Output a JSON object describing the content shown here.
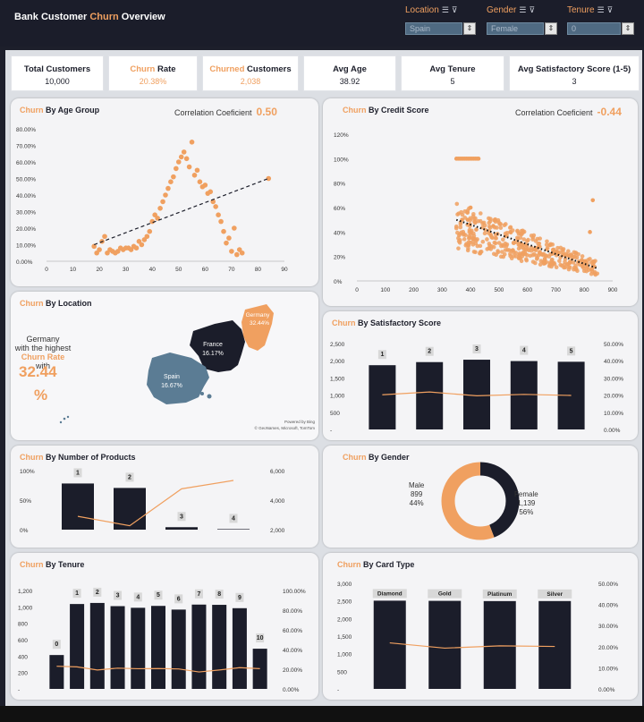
{
  "header": {
    "title_start": "Bank Customer ",
    "title_accent": "Churn",
    "title_end": " Overview",
    "filters": [
      {
        "label": "Location",
        "value": "Spain"
      },
      {
        "label": "Gender",
        "value": "Female"
      },
      {
        "label": "Tenure",
        "value": "0"
      }
    ]
  },
  "kpis": [
    {
      "label_a": "Total Customers",
      "label_b": "",
      "value": "10,000",
      "accent": false
    },
    {
      "label_a": "Churn",
      "label_b": " Rate",
      "value": "20.38%",
      "accent": true
    },
    {
      "label_a": "Churned",
      "label_b": " Customers",
      "value": "2,038",
      "accent": true
    },
    {
      "label_a": "Avg Age",
      "label_b": "",
      "value": "38.92",
      "accent": false
    },
    {
      "label_a": "Avg Tenure",
      "label_b": "",
      "value": "5",
      "accent": false
    },
    {
      "label_a": "Avg Satisfactory Score (1-5)",
      "label_b": "",
      "value": "3",
      "accent": false
    }
  ],
  "age": {
    "title_a": "Churn",
    "title_b": " By Age Group",
    "corr_label": "Correlation Coeficient",
    "corr_value": "0.50"
  },
  "credit": {
    "title_a": "Churn",
    "title_b": " By Credit Score",
    "corr_label": "Correlation Coeficient",
    "corr_value": "-0.44"
  },
  "location": {
    "title_a": "Churn",
    "title_b": " By Location",
    "note_1": "Germany",
    "note_2": "with the highest",
    "note_3a": "Churn Rate",
    "note_3b": " with",
    "note_value": "32.44",
    "note_pct": "%",
    "germany_name": "Germany",
    "germany_value": "32.44%",
    "france_name": "France",
    "france_value": "16.17%",
    "spain_name": "Spain",
    "spain_value": "16.67%",
    "credit_1": "Powered by Bing",
    "credit_2": "© GeoNames, Microsoft, TomTom"
  },
  "satisfaction": {
    "title_a": "Churn",
    "title_b": " By Satisfactory Score"
  },
  "products": {
    "title_a": "Churn",
    "title_b": " By Number of Products"
  },
  "gender": {
    "title_a": "Churn",
    "title_b": " By Gender",
    "male_label": "Male",
    "male_count": "899",
    "male_pct": "44%",
    "female_label": "Female",
    "female_count": "1,139",
    "female_pct": "56%"
  },
  "tenure": {
    "title_a": "Churn",
    "title_b": " By Tenure"
  },
  "card": {
    "title_a": "Churn",
    "title_b": " By Card Type"
  },
  "colors": {
    "accent": "#f0a060",
    "dark": "#1b1d2a",
    "map_spain": "#5b7c94"
  },
  "chart_data": [
    {
      "type": "scatter",
      "title": "Churn By Age Group",
      "x_ticks": [
        "0",
        "10",
        "20",
        "30",
        "40",
        "50",
        "60",
        "70",
        "80",
        "90"
      ],
      "y_ticks": [
        "0.00%",
        "10.00%",
        "20.00%",
        "30.00%",
        "40.00%",
        "50.00%",
        "60.00%",
        "70.00%",
        "80.00%"
      ],
      "xlim": [
        0,
        90
      ],
      "ylim": [
        0,
        80
      ],
      "trendline": [
        [
          18,
          10
        ],
        [
          84,
          50
        ]
      ],
      "points": [
        [
          18,
          9
        ],
        [
          19,
          5
        ],
        [
          20,
          7
        ],
        [
          21,
          12
        ],
        [
          22,
          15
        ],
        [
          23,
          5
        ],
        [
          24,
          7
        ],
        [
          25,
          6
        ],
        [
          26,
          5
        ],
        [
          27,
          6
        ],
        [
          28,
          8
        ],
        [
          29,
          7
        ],
        [
          30,
          8
        ],
        [
          31,
          8
        ],
        [
          32,
          7
        ],
        [
          33,
          9
        ],
        [
          34,
          8
        ],
        [
          35,
          12
        ],
        [
          36,
          10
        ],
        [
          37,
          13
        ],
        [
          38,
          15
        ],
        [
          39,
          18
        ],
        [
          40,
          24
        ],
        [
          41,
          28
        ],
        [
          42,
          26
        ],
        [
          43,
          32
        ],
        [
          44,
          36
        ],
        [
          45,
          40
        ],
        [
          46,
          44
        ],
        [
          47,
          48
        ],
        [
          48,
          51
        ],
        [
          49,
          56
        ],
        [
          50,
          60
        ],
        [
          51,
          63
        ],
        [
          52,
          66
        ],
        [
          53,
          62
        ],
        [
          54,
          57
        ],
        [
          55,
          72
        ],
        [
          56,
          52
        ],
        [
          57,
          55
        ],
        [
          58,
          48
        ],
        [
          59,
          45
        ],
        [
          60,
          46
        ],
        [
          61,
          41
        ],
        [
          62,
          42
        ],
        [
          63,
          36
        ],
        [
          64,
          33
        ],
        [
          65,
          28
        ],
        [
          66,
          24
        ],
        [
          67,
          18
        ],
        [
          68,
          11
        ],
        [
          69,
          14
        ],
        [
          70,
          6
        ],
        [
          71,
          20
        ],
        [
          72,
          4
        ],
        [
          73,
          7
        ],
        [
          74,
          5
        ],
        [
          84,
          50
        ]
      ]
    },
    {
      "type": "scatter",
      "title": "Churn By Credit Score",
      "x_ticks": [
        "0",
        "100",
        "200",
        "300",
        "400",
        "500",
        "600",
        "700",
        "800",
        "900"
      ],
      "y_ticks": [
        "0%",
        "20%",
        "40%",
        "60%",
        "80%",
        "100%",
        "120%"
      ],
      "xlim": [
        0,
        900
      ],
      "ylim": [
        0,
        120
      ],
      "trendline": [
        [
          350,
          50
        ],
        [
          850,
          10
        ]
      ]
    },
    {
      "type": "bar",
      "title": "Churn By Satisfactory Score",
      "categories": [
        "1",
        "2",
        "3",
        "4",
        "5"
      ],
      "values": [
        1870,
        1960,
        2030,
        1990,
        1970
      ],
      "line_values": [
        20.2,
        21.8,
        19.6,
        20.4,
        19.8
      ],
      "y_ticks": [
        "-",
        "500",
        "1,000",
        "1,500",
        "2,000",
        "2,500"
      ],
      "y2_ticks": [
        "0.00%",
        "10.00%",
        "20.00%",
        "30.00%",
        "40.00%",
        "50.00%"
      ],
      "ylim": [
        0,
        2500
      ],
      "y2lim": [
        0,
        50
      ]
    },
    {
      "type": "bar",
      "title": "Churn By Number of Products",
      "categories": [
        "1",
        "2",
        "3",
        "4"
      ],
      "values": [
        5080,
        4590,
        270,
        60
      ],
      "line_values": [
        27,
        8,
        83,
        100
      ],
      "y_ticks": [
        "0%",
        "50%",
        "100%"
      ],
      "y2_ticks": [
        "2,000",
        "4,000",
        "6,000"
      ],
      "ylim": [
        0,
        6500
      ],
      "y2lim": [
        0,
        120
      ]
    },
    {
      "type": "pie",
      "title": "Churn By Gender",
      "categories": [
        "Male",
        "Female"
      ],
      "values": [
        899,
        1139
      ],
      "percent": [
        44,
        56
      ]
    },
    {
      "type": "bar",
      "title": "Churn By Tenure",
      "categories": [
        "0",
        "1",
        "2",
        "3",
        "4",
        "5",
        "6",
        "7",
        "8",
        "9",
        "10"
      ],
      "values": [
        413,
        1035,
        1048,
        1009,
        989,
        1012,
        967,
        1028,
        1025,
        984,
        490
      ],
      "line_values": [
        23,
        22.4,
        19.2,
        21.1,
        20.5,
        20.7,
        20.3,
        17.2,
        19.2,
        21.6,
        20.6
      ],
      "y_ticks": [
        "-",
        "200",
        "400",
        "600",
        "800",
        "1,000",
        "1,200"
      ],
      "y2_ticks": [
        "0.00%",
        "20.00%",
        "40.00%",
        "60.00%",
        "80.00%",
        "100.00%"
      ],
      "ylim": [
        0,
        1200
      ],
      "y2lim": [
        0,
        100
      ]
    },
    {
      "type": "bar",
      "title": "Churn By Card Type",
      "categories": [
        "Diamond",
        "Gold",
        "Platinum",
        "Silver"
      ],
      "values": [
        2507,
        2502,
        2495,
        2496
      ],
      "line_values": [
        21.8,
        19.3,
        20.4,
        20.1
      ],
      "y_ticks": [
        "-",
        "500",
        "1,000",
        "1,500",
        "2,000",
        "2,500",
        "3,000"
      ],
      "y2_ticks": [
        "0.00%",
        "10.00%",
        "20.00%",
        "30.00%",
        "40.00%",
        "50.00%"
      ],
      "ylim": [
        0,
        3000
      ],
      "y2lim": [
        0,
        50
      ]
    }
  ]
}
